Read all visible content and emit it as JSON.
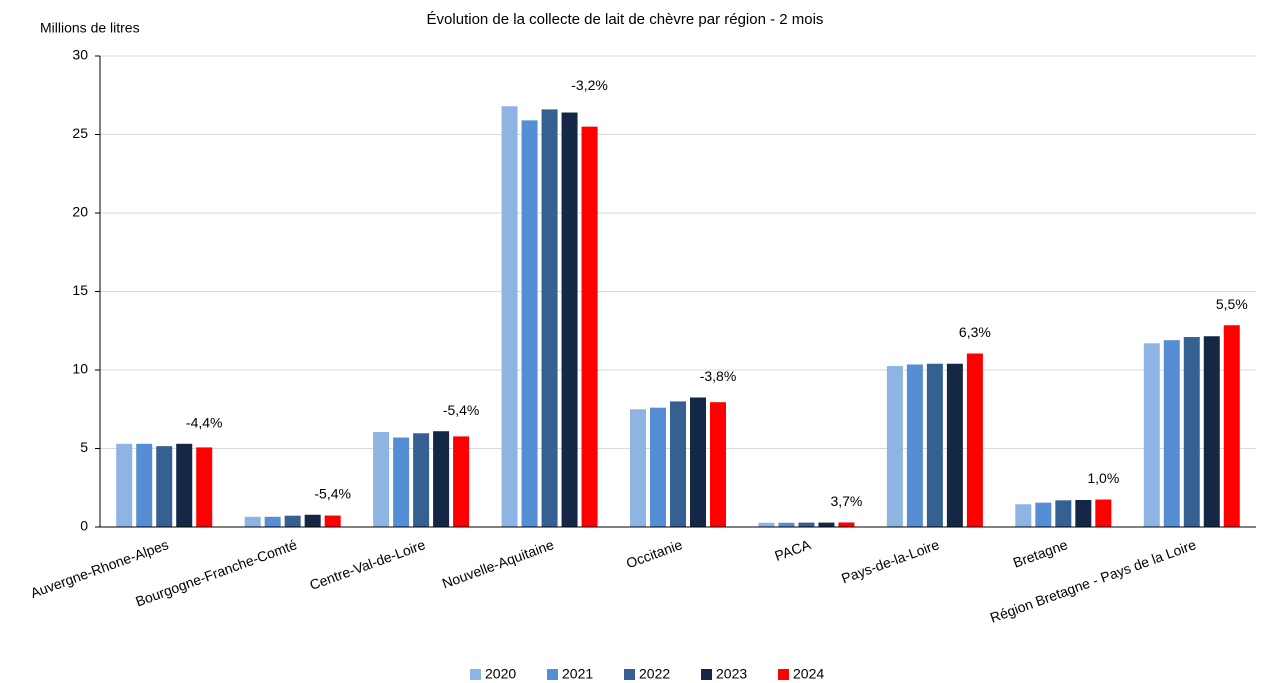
{
  "chart_data": {
    "type": "bar",
    "title": "Évolution de la collecte de lait de chèvre par région - 2 mois",
    "y_label": "Millions de litres",
    "categories": [
      "Auvergne-Rhone-Alpes",
      "Bourgogne-Franche-Comté",
      "Centre-Val-de-Loire",
      "Nouvelle-Aquitaine",
      "Occitanie",
      "PACA",
      "Pays-de-la-Loire",
      "Bretagne",
      "Région Bretagne - Pays de la Loire"
    ],
    "series": [
      {
        "name": "2020",
        "color": "#8eb4e3",
        "values": [
          5.3,
          0.65,
          6.05,
          26.8,
          7.5,
          0.27,
          10.25,
          1.45,
          11.7
        ]
      },
      {
        "name": "2021",
        "color": "#558ed5",
        "values": [
          5.3,
          0.65,
          5.7,
          25.9,
          7.6,
          0.27,
          10.35,
          1.55,
          11.9
        ]
      },
      {
        "name": "2022",
        "color": "#376092",
        "values": [
          5.15,
          0.72,
          5.97,
          26.6,
          8.0,
          0.28,
          10.4,
          1.7,
          12.1
        ]
      },
      {
        "name": "2023",
        "color": "#142744",
        "values": [
          5.3,
          0.78,
          6.1,
          26.4,
          8.25,
          0.28,
          10.4,
          1.72,
          12.15
        ]
      },
      {
        "name": "2024",
        "color": "#ff0000",
        "values": [
          5.07,
          0.73,
          5.77,
          25.5,
          7.95,
          0.29,
          11.05,
          1.75,
          12.85
        ]
      }
    ],
    "annotations": [
      "-4,4%",
      "-5,4%",
      "-5,4%",
      "-3,2%",
      "-3,8%",
      "3,7%",
      "6,3%",
      "1,0%",
      "5,5%"
    ],
    "ylim": [
      0,
      30
    ],
    "yticks": [
      0,
      5,
      10,
      15,
      20,
      25,
      30
    ],
    "grid": true,
    "legend": "bottom"
  }
}
